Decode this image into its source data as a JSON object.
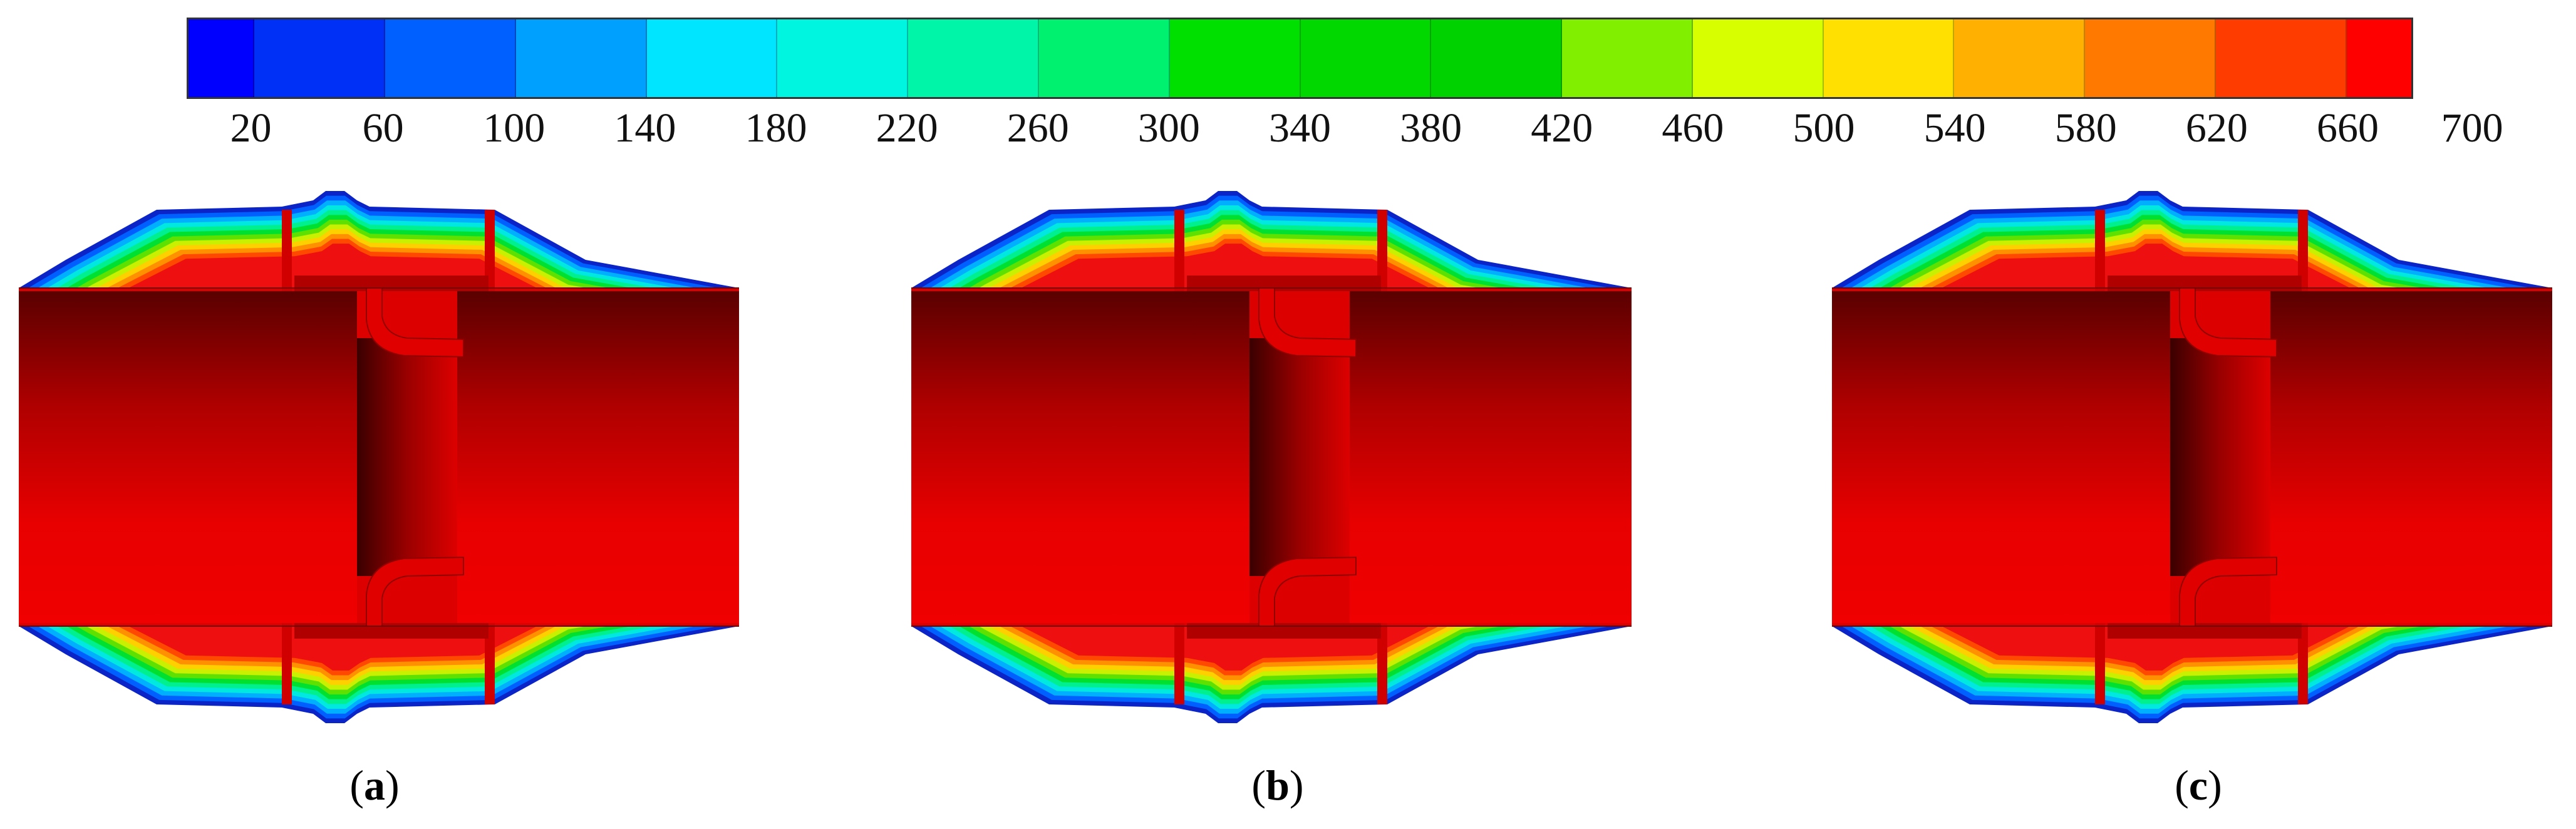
{
  "legend": {
    "colors": [
      "#0000ff",
      "#0030f5",
      "#0060ff",
      "#00a0ff",
      "#00e5ff",
      "#00f5e0",
      "#00f5a8",
      "#00f070",
      "#00e000",
      "#00d800",
      "#00d200",
      "#80f000",
      "#d8ff00",
      "#ffe000",
      "#ffb000",
      "#ff7800",
      "#ff3c00",
      "#ff0000"
    ],
    "ticks": [
      "20",
      "60",
      "100",
      "140",
      "180",
      "220",
      "260",
      "300",
      "340",
      "380",
      "420",
      "460",
      "500",
      "540",
      "580",
      "620",
      "660",
      "700"
    ]
  },
  "panels": [
    {
      "label": "a"
    },
    {
      "label": "b"
    },
    {
      "label": "c"
    }
  ]
}
